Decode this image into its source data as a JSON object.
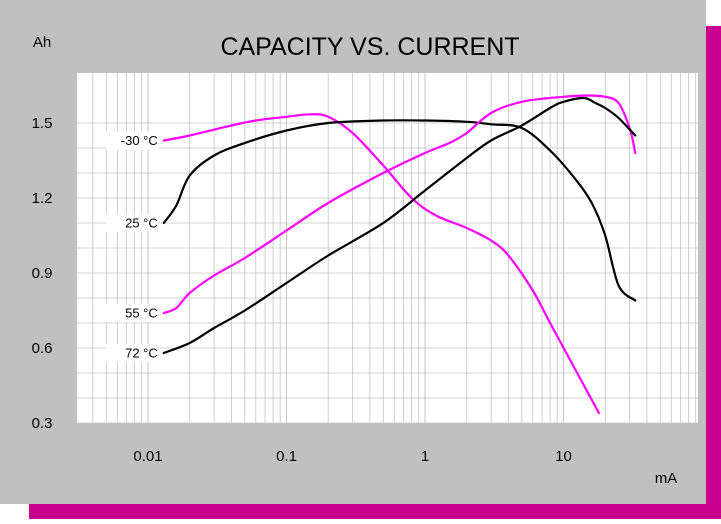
{
  "chart_data": {
    "type": "line",
    "title": "CAPACITY VS. CURRENT",
    "ylabel": "Ah",
    "xlabel": "mA",
    "x_scale": "log",
    "xlim": [
      0.003,
      40
    ],
    "ylim": [
      0.3,
      1.75
    ],
    "x_ticks": [
      0.01,
      0.1,
      1,
      10
    ],
    "x_tick_labels": [
      "0.01",
      "0.1",
      "1",
      "10"
    ],
    "y_ticks": [
      0.3,
      0.6,
      0.9,
      1.2,
      1.5
    ],
    "y_tick_labels": [
      "0.3",
      "0.6",
      "0.9",
      "1.2",
      "1.5"
    ],
    "grid": true,
    "colors": {
      "black_curve": "#000000",
      "magenta_curve": "#ff00ff",
      "plot_bg": "#ffffff",
      "panel_bg": "#c0c0c0",
      "shadow": "#c8008c",
      "grid": "#c4c4c4"
    },
    "series": [
      {
        "name": "-30 °C",
        "color": "#ff00ff",
        "points": [
          [
            0.013,
            1.43
          ],
          [
            0.02,
            1.45
          ],
          [
            0.04,
            1.49
          ],
          [
            0.06,
            1.51
          ],
          [
            0.1,
            1.525
          ],
          [
            0.15,
            1.535
          ],
          [
            0.2,
            1.525
          ],
          [
            0.3,
            1.46
          ],
          [
            0.5,
            1.33
          ],
          [
            0.8,
            1.2
          ],
          [
            1.2,
            1.13
          ],
          [
            2,
            1.08
          ],
          [
            3,
            1.03
          ],
          [
            4,
            0.97
          ],
          [
            6,
            0.83
          ],
          [
            8,
            0.7
          ],
          [
            12,
            0.52
          ],
          [
            18,
            0.34
          ]
        ]
      },
      {
        "name": "25 °C",
        "color": "#000000",
        "points": [
          [
            0.013,
            1.1
          ],
          [
            0.016,
            1.17
          ],
          [
            0.02,
            1.29
          ],
          [
            0.03,
            1.37
          ],
          [
            0.05,
            1.42
          ],
          [
            0.1,
            1.47
          ],
          [
            0.2,
            1.5
          ],
          [
            0.5,
            1.51
          ],
          [
            1,
            1.51
          ],
          [
            2,
            1.505
          ],
          [
            3,
            1.495
          ],
          [
            5,
            1.48
          ],
          [
            8,
            1.39
          ],
          [
            12,
            1.28
          ],
          [
            16,
            1.18
          ],
          [
            20,
            1.05
          ],
          [
            25,
            0.85
          ],
          [
            33,
            0.79
          ]
        ]
      },
      {
        "name": "55 °C",
        "color": "#ff00ff",
        "points": [
          [
            0.013,
            0.74
          ],
          [
            0.016,
            0.76
          ],
          [
            0.02,
            0.82
          ],
          [
            0.03,
            0.89
          ],
          [
            0.05,
            0.96
          ],
          [
            0.1,
            1.07
          ],
          [
            0.2,
            1.18
          ],
          [
            0.5,
            1.3
          ],
          [
            1,
            1.38
          ],
          [
            1.5,
            1.42
          ],
          [
            2,
            1.46
          ],
          [
            3,
            1.54
          ],
          [
            5,
            1.585
          ],
          [
            10,
            1.605
          ],
          [
            15,
            1.61
          ],
          [
            20,
            1.605
          ],
          [
            25,
            1.58
          ],
          [
            30,
            1.48
          ],
          [
            33,
            1.38
          ]
        ]
      },
      {
        "name": "72 °C",
        "color": "#000000",
        "points": [
          [
            0.013,
            0.58
          ],
          [
            0.02,
            0.62
          ],
          [
            0.03,
            0.68
          ],
          [
            0.05,
            0.75
          ],
          [
            0.1,
            0.86
          ],
          [
            0.2,
            0.97
          ],
          [
            0.5,
            1.1
          ],
          [
            1,
            1.23
          ],
          [
            2,
            1.36
          ],
          [
            3,
            1.43
          ],
          [
            5,
            1.49
          ],
          [
            8,
            1.56
          ],
          [
            10,
            1.585
          ],
          [
            14,
            1.6
          ],
          [
            17,
            1.58
          ],
          [
            20,
            1.56
          ],
          [
            25,
            1.52
          ],
          [
            33,
            1.45
          ]
        ]
      }
    ]
  }
}
